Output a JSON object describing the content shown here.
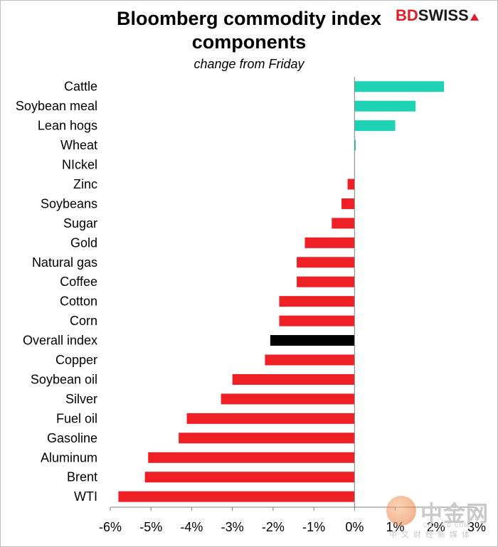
{
  "logo": {
    "bd": "BD",
    "swiss": "SWISS"
  },
  "watermark": {
    "big": "中金网",
    "url": "CNGOLD.COM",
    "small": "中文财经新媒体"
  },
  "chart_data": {
    "type": "bar",
    "orientation": "horizontal",
    "title_lines": [
      "Bloomberg commodity index",
      "components"
    ],
    "subtitle": "change from Friday",
    "xlabel": "",
    "ylabel": "",
    "xlim": [
      -6,
      3
    ],
    "ticks": [
      {
        "value": -6,
        "label": "-6%"
      },
      {
        "value": -5,
        "label": "-5%"
      },
      {
        "value": -4,
        "label": "-4%"
      },
      {
        "value": -3,
        "label": "-3%"
      },
      {
        "value": -2,
        "label": "-2%"
      },
      {
        "value": -1,
        "label": "-1%"
      },
      {
        "value": 0,
        "label": "0%"
      },
      {
        "value": 1,
        "label": "1%"
      },
      {
        "value": 2,
        "label": "2%"
      },
      {
        "value": 3,
        "label": "3%"
      }
    ],
    "colors": {
      "positive": "#1ed2b4",
      "negative": "#ef1f26",
      "highlight": "#000000"
    },
    "grid": false,
    "legend": "none",
    "categories": [
      "Cattle",
      "Soybean meal",
      "Lean hogs",
      "Wheat",
      "NIckel",
      "Zinc",
      "Soybeans",
      "Sugar",
      "Gold",
      "Natural gas",
      "Coffee",
      "Cotton",
      "Corn",
      "Overall index",
      "Copper",
      "Soybean oil",
      "Silver",
      "Fuel oil",
      "Gasoline",
      "Aluminum",
      "Brent",
      "WTI"
    ],
    "values": [
      2.2,
      1.5,
      1.0,
      0.03,
      0.0,
      -0.17,
      -0.32,
      -0.56,
      -1.22,
      -1.42,
      -1.42,
      -1.85,
      -1.85,
      -2.07,
      -2.2,
      -3.0,
      -3.28,
      -4.12,
      -4.32,
      -5.07,
      -5.15,
      -5.8
    ],
    "highlight": "Overall index"
  }
}
